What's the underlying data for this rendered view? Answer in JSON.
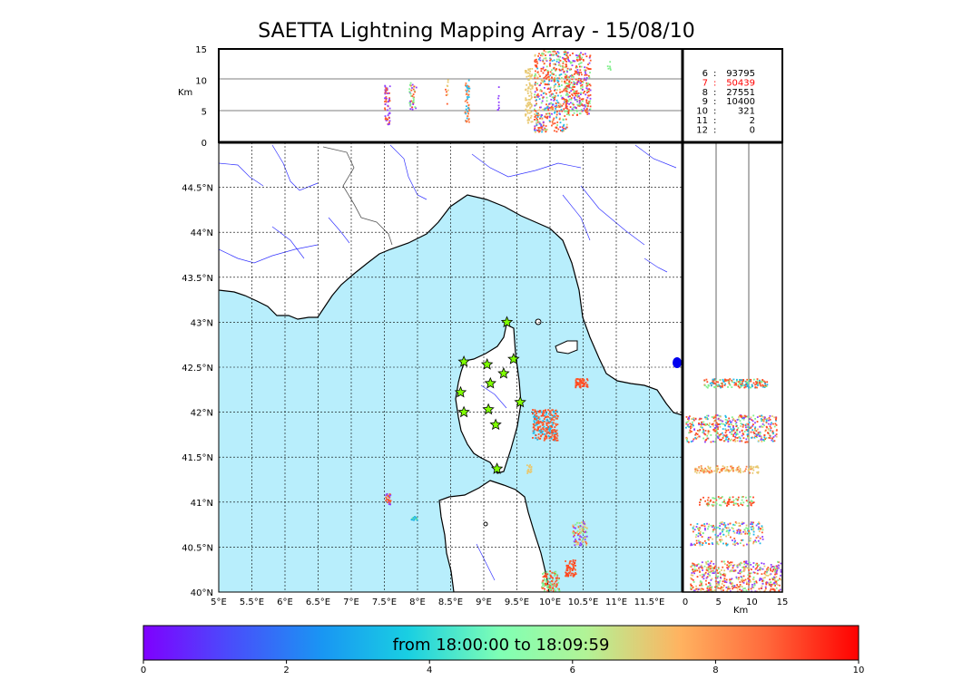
{
  "title": "SAETTA Lightning Mapping Array - 15/08/10",
  "top_panel": {
    "ylabel": "Km",
    "yticks": [
      "0",
      "5",
      "10",
      "15"
    ]
  },
  "right_panel": {
    "xlabel": "Km",
    "xticks": [
      "0",
      "5",
      "10",
      "15"
    ]
  },
  "station_counts": [
    {
      "k": "6",
      "v": "93795",
      "color": "#000000"
    },
    {
      "k": "7",
      "v": "50439",
      "color": "#ff0000"
    },
    {
      "k": "8",
      "v": "27551",
      "color": "#000000"
    },
    {
      "k": "9",
      "v": "10400",
      "color": "#000000"
    },
    {
      "k": "10",
      "v": "321",
      "color": "#000000"
    },
    {
      "k": "11",
      "v": "2",
      "color": "#000000"
    },
    {
      "k": "12",
      "v": "0",
      "color": "#000000"
    }
  ],
  "map": {
    "lon_ticks": [
      "5°E",
      "5.5°E",
      "6°E",
      "6.5°E",
      "7°E",
      "7.5°E",
      "8°E",
      "8.5°E",
      "9°E",
      "9.5°E",
      "10°E",
      "10.5°E",
      "11°E",
      "11.5°E"
    ],
    "lat_ticks": [
      "40°N",
      "40.5°N",
      "41°N",
      "41.5°N",
      "42°N",
      "42.5°N",
      "43°N",
      "43.5°N",
      "44°N",
      "44.5°N"
    ],
    "lon_range": [
      5,
      12
    ],
    "lat_range": [
      40,
      45
    ],
    "sea_color": "#b8eefc",
    "star_color": "#7fff00",
    "stations": [
      [
        9.35,
        43.0
      ],
      [
        8.7,
        42.56
      ],
      [
        9.05,
        42.53
      ],
      [
        9.45,
        42.59
      ],
      [
        9.3,
        42.43
      ],
      [
        9.1,
        42.32
      ],
      [
        8.65,
        42.22
      ],
      [
        9.55,
        42.11
      ],
      [
        8.7,
        42.0
      ],
      [
        9.07,
        42.03
      ],
      [
        9.18,
        41.86
      ],
      [
        9.2,
        41.37
      ]
    ]
  },
  "colorbar": {
    "caption": "from 18:00:00 to 18:09:59",
    "ticks": [
      "0",
      "2",
      "4",
      "6",
      "8",
      "10"
    ],
    "range": [
      0,
      10
    ]
  }
}
